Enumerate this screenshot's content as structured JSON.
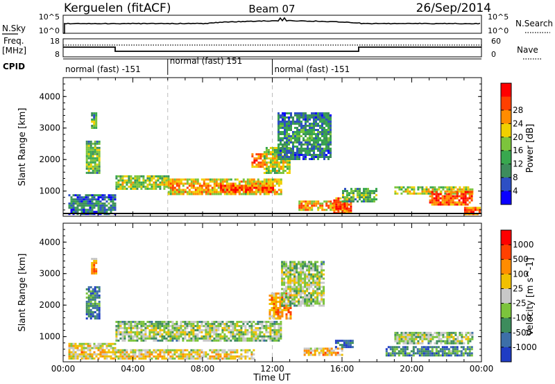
{
  "header": {
    "station": "Kerguelen (fitACF)",
    "beam": "Beam 07",
    "date": "26/Sep/2014"
  },
  "top_panels": {
    "nsky_label": "N.Sky",
    "nsky_ticks": [
      "10^5",
      "10^0"
    ],
    "nsearch_label": "N.Search",
    "nsearch_ticks": [
      "10^5",
      "10^0"
    ],
    "freq_label_line1": "Freq.",
    "freq_label_line2": "[MHz]",
    "freq_ticks": [
      "18",
      "8"
    ],
    "nave_label": "Nave",
    "nave_ticks": [
      "60",
      "0"
    ],
    "cpid_label": "CPID",
    "cpid_segments": [
      {
        "label": "normal (fast) -151",
        "start_hour": 0,
        "end_hour": 6
      },
      {
        "label": "normal (fast) 151",
        "start_hour": 6,
        "end_hour": 12
      },
      {
        "label": "normal (fast) -151",
        "start_hour": 12,
        "end_hour": 24
      }
    ]
  },
  "chart_data": [
    {
      "type": "heatmap",
      "name": "power",
      "xlabel": "",
      "ylabel": "Slant Range [km]",
      "xlim": [
        0,
        24
      ],
      "ylim": [
        200,
        4600
      ],
      "yticks": [
        "1000",
        "2000",
        "3000",
        "4000"
      ],
      "colorbar_label": "Power [dB]",
      "colorbar_ticks": [
        "4",
        "8",
        "12",
        "16",
        "20",
        "24",
        "28"
      ],
      "colorbar_colors": [
        "#0a00ff",
        "#2d4fc4",
        "#3d8c5c",
        "#38a84e",
        "#7cc43c",
        "#f0d000",
        "#ff8c00",
        "#ff4000",
        "#ff0000"
      ],
      "regions": [
        {
          "t0": 3.0,
          "t1": 6.0,
          "r0": 1050,
          "r1": 1500,
          "level": 0.55
        },
        {
          "t0": 6.0,
          "t1": 12.5,
          "r0": 900,
          "r1": 1400,
          "level": 0.72
        },
        {
          "t0": 9.0,
          "t1": 12.0,
          "r0": 1000,
          "r1": 1200,
          "level": 0.9
        },
        {
          "t0": 1.3,
          "t1": 2.1,
          "r0": 1600,
          "r1": 2600,
          "level": 0.5
        },
        {
          "t0": 1.6,
          "t1": 1.9,
          "r0": 3000,
          "r1": 3500,
          "level": 0.45
        },
        {
          "t0": 10.8,
          "t1": 11.6,
          "r0": 1800,
          "r1": 2200,
          "level": 0.85
        },
        {
          "t0": 11.5,
          "t1": 13.0,
          "r0": 1600,
          "r1": 2400,
          "level": 0.6
        },
        {
          "t0": 12.3,
          "t1": 15.3,
          "r0": 2000,
          "r1": 3500,
          "level": 0.35
        },
        {
          "t0": 13.5,
          "t1": 16.3,
          "r0": 400,
          "r1": 700,
          "level": 0.75
        },
        {
          "t0": 15.5,
          "t1": 16.5,
          "r0": 300,
          "r1": 800,
          "level": 0.9
        },
        {
          "t0": 16.0,
          "t1": 18.0,
          "r0": 700,
          "r1": 1100,
          "level": 0.45
        },
        {
          "t0": 19.0,
          "t1": 23.5,
          "r0": 900,
          "r1": 1150,
          "level": 0.6
        },
        {
          "t0": 21.0,
          "t1": 23.5,
          "r0": 600,
          "r1": 1000,
          "level": 0.88
        },
        {
          "t0": 0.3,
          "t1": 3.0,
          "r0": 300,
          "r1": 900,
          "level": 0.3
        },
        {
          "t0": 23.0,
          "t1": 23.9,
          "r0": 300,
          "r1": 500,
          "level": 0.85
        }
      ]
    },
    {
      "type": "heatmap",
      "name": "velocity",
      "xlabel": "Time UT",
      "ylabel": "Slant Range [km]",
      "xlim": [
        0,
        24
      ],
      "ylim": [
        200,
        4600
      ],
      "xticks": [
        "00:00",
        "04:00",
        "08:00",
        "12:00",
        "16:00",
        "20:00",
        "00:00"
      ],
      "yticks": [
        "1000",
        "2000",
        "3000",
        "4000"
      ],
      "colorbar_label": "Velocity [m s^-1]",
      "colorbar_ticks": [
        "1000",
        "500",
        "100",
        "25",
        "-25",
        "-100",
        "-500",
        "-1000"
      ],
      "colorbar_colors": [
        "#1f3cc4",
        "#3d6fa8",
        "#3d8c5c",
        "#7cc43c",
        "#c8c8c8",
        "#f0c000",
        "#ff8c00",
        "#ff4000",
        "#ff0000"
      ],
      "regions": [
        {
          "t0": 3.0,
          "t1": 12.5,
          "r0": 900,
          "r1": 1500,
          "level": 0.5
        },
        {
          "t0": 1.3,
          "t1": 2.1,
          "r0": 1600,
          "r1": 2600,
          "level": 0.3
        },
        {
          "t0": 1.6,
          "t1": 1.9,
          "r0": 3000,
          "r1": 3500,
          "level": 0.75
        },
        {
          "t0": 11.8,
          "t1": 13.0,
          "r0": 1600,
          "r1": 2400,
          "level": 0.75
        },
        {
          "t0": 12.5,
          "t1": 15.0,
          "r0": 2000,
          "r1": 3400,
          "level": 0.5
        },
        {
          "t0": 13.8,
          "t1": 16.0,
          "r0": 400,
          "r1": 650,
          "level": 0.7
        },
        {
          "t0": 15.6,
          "t1": 16.6,
          "r0": 700,
          "r1": 900,
          "level": 0.2
        },
        {
          "t0": 19.0,
          "t1": 23.5,
          "r0": 800,
          "r1": 1150,
          "level": 0.5
        },
        {
          "t0": 0.3,
          "t1": 3.0,
          "r0": 300,
          "r1": 800,
          "level": 0.62
        },
        {
          "t0": 3.0,
          "t1": 11.0,
          "r0": 300,
          "r1": 600,
          "level": 0.62
        },
        {
          "t0": 18.5,
          "t1": 23.5,
          "r0": 400,
          "r1": 700,
          "level": 0.3
        }
      ]
    }
  ]
}
